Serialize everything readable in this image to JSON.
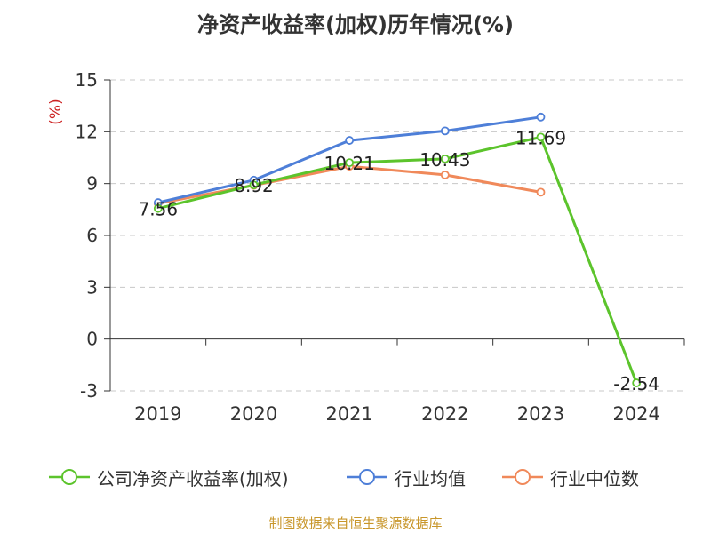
{
  "chart_data": {
    "type": "line",
    "title": "净资产收益率(加权)历年情况(%)",
    "ylabel": "(%)",
    "xlabel": "",
    "categories": [
      "2019",
      "2020",
      "2021",
      "2022",
      "2023",
      "2024"
    ],
    "ylim": [
      -3,
      15
    ],
    "yticks": [
      "15",
      "12",
      "9",
      "6",
      "3",
      "0",
      "-3"
    ],
    "grid": true,
    "legend_position": "bottom",
    "series": [
      {
        "name": "公司净资产收益率(加权)",
        "color": "#5cc42c",
        "values": [
          7.56,
          8.92,
          10.21,
          10.43,
          11.69,
          -2.54
        ],
        "labels": [
          "7.56",
          "8.92",
          "10.21",
          "10.43",
          "11.69",
          "-2.54"
        ]
      },
      {
        "name": "行业均值",
        "color": "#4e7fd8",
        "values": [
          7.9,
          9.2,
          11.5,
          12.05,
          12.85,
          null
        ]
      },
      {
        "name": "行业中位数",
        "color": "#f0895a",
        "values": [
          7.85,
          8.9,
          10.0,
          9.5,
          8.5,
          null
        ]
      }
    ]
  },
  "source_note": "制图数据来自恒生聚源数据库"
}
